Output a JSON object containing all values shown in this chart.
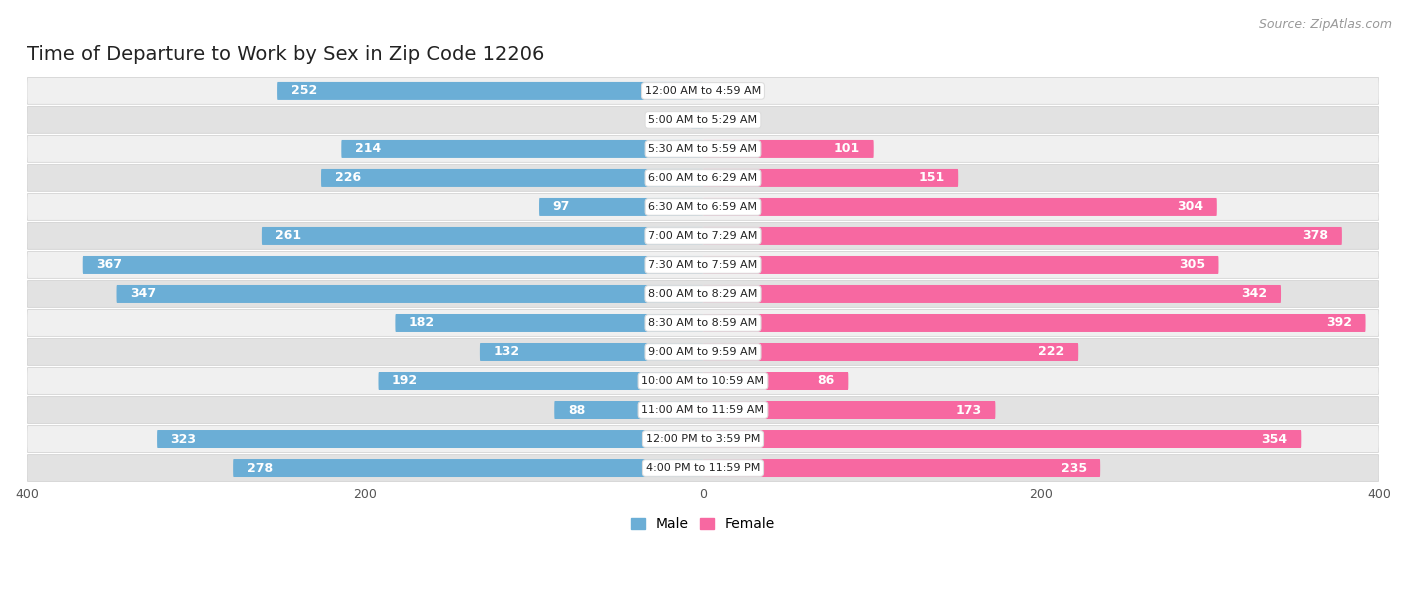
{
  "title": "Time of Departure to Work by Sex in Zip Code 12206",
  "source": "Source: ZipAtlas.com",
  "categories": [
    "12:00 AM to 4:59 AM",
    "5:00 AM to 5:29 AM",
    "5:30 AM to 5:59 AM",
    "6:00 AM to 6:29 AM",
    "6:30 AM to 6:59 AM",
    "7:00 AM to 7:29 AM",
    "7:30 AM to 7:59 AM",
    "8:00 AM to 8:29 AM",
    "8:30 AM to 8:59 AM",
    "9:00 AM to 9:59 AM",
    "10:00 AM to 10:59 AM",
    "11:00 AM to 11:59 AM",
    "12:00 PM to 3:59 PM",
    "4:00 PM to 11:59 PM"
  ],
  "male_values": [
    252,
    7,
    214,
    226,
    97,
    261,
    367,
    347,
    182,
    132,
    192,
    88,
    323,
    278
  ],
  "female_values": [
    0,
    0,
    101,
    151,
    304,
    378,
    305,
    342,
    392,
    222,
    86,
    173,
    354,
    235
  ],
  "male_color": "#6baed6",
  "female_color": "#f768a1",
  "male_color_light": "#9ecae1",
  "female_color_light": "#fbb4c9",
  "bar_label_color_outside": "#555555",
  "xlim": 400,
  "row_bg_light": "#f0f0f0",
  "row_bg_dark": "#e2e2e2",
  "title_fontsize": 14,
  "source_fontsize": 9,
  "label_fontsize": 9,
  "tick_fontsize": 9,
  "cat_fontsize": 8,
  "legend_fontsize": 10
}
